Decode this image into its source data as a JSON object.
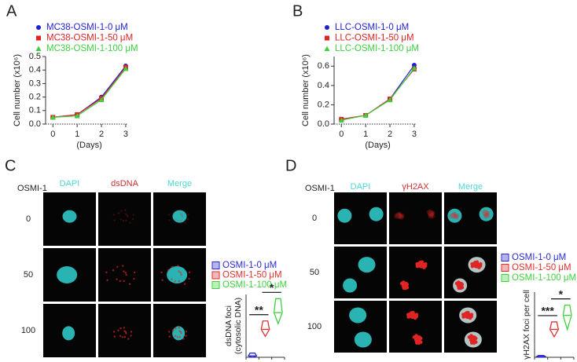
{
  "chart_data": [
    {
      "type": "line",
      "label": "A",
      "y_label": "Cell number (x10⁶)",
      "x_label": "(Days)",
      "x": [
        0,
        1,
        2,
        3
      ],
      "xlim": [
        -0.3,
        3.1
      ],
      "xticks": [
        0,
        1,
        2,
        3
      ],
      "ylim": [
        0,
        0.5
      ],
      "yticks": [
        {
          "value": 0,
          "label": "0.0"
        },
        0.1,
        0.2,
        0.3,
        0.4,
        0.5
      ],
      "series": [
        {
          "name": "MC38-OSMI-1-0 μM",
          "color": "#1f1fd6",
          "marker": "circle",
          "values": [
            0.05,
            0.07,
            0.2,
            0.43
          ]
        },
        {
          "name": "MC38-OSMI-1-50 μM",
          "color": "#e02424",
          "marker": "square",
          "values": [
            0.05,
            0.07,
            0.19,
            0.42
          ]
        },
        {
          "name": "MC38-OSMI-1-100 μM",
          "color": "#3fcf3f",
          "marker": "triangle",
          "values": [
            0.05,
            0.06,
            0.18,
            0.41
          ]
        }
      ]
    },
    {
      "type": "line",
      "label": "B",
      "y_label": "Cell number (x10⁶)",
      "x_label": "(Days)",
      "x": [
        0,
        1,
        2,
        3
      ],
      "xlim": [
        -0.3,
        3.1
      ],
      "xticks": [
        0,
        1,
        2,
        3
      ],
      "ylim": [
        0,
        0.7
      ],
      "yticks": [
        {
          "value": 0,
          "label": "0.0"
        },
        0.2,
        0.4,
        0.6
      ],
      "series": [
        {
          "name": "LLC-OSMI-1-0 μM",
          "color": "#1f1fd6",
          "marker": "circle",
          "values": [
            0.05,
            0.09,
            0.26,
            0.61
          ]
        },
        {
          "name": "LLC-OSMI-1-50 μM",
          "color": "#e02424",
          "marker": "square",
          "values": [
            0.05,
            0.09,
            0.26,
            0.57
          ]
        },
        {
          "name": "LLC-OSMI-1-100 μM",
          "color": "#3fcf3f",
          "marker": "triangle",
          "values": [
            0.04,
            0.09,
            0.25,
            0.58
          ]
        }
      ]
    },
    {
      "type": "violin",
      "label": "C",
      "y_label": [
        "dsDNA foci",
        "(cytosolic DNA)"
      ],
      "ylim": [
        0,
        45
      ],
      "image_panel": {
        "treatment_label": "OSMI-1",
        "columns": [
          "DAPI",
          "dsDNA",
          "Merge"
        ],
        "column_colors": [
          "#4fd6d6",
          "#d03030",
          "#4fd6d6"
        ],
        "rows": [
          "0",
          "50",
          "100"
        ]
      },
      "series": [
        {
          "name": "OSMI-1-0 μM",
          "color": "#2a2ad8",
          "min": 0,
          "median": 1,
          "max": 3
        },
        {
          "name": "OSMI-1-50 μM",
          "color": "#e03030",
          "min": 15,
          "median": 20,
          "max": 26
        },
        {
          "name": "OSMI-1-100 μM",
          "color": "#3fd03f",
          "min": 24,
          "median": 32,
          "max": 42
        }
      ],
      "comparisons": [
        {
          "label": "**",
          "between": [
            0,
            1
          ]
        },
        {
          "label": "*",
          "between": [
            1,
            2
          ]
        }
      ]
    },
    {
      "type": "violin",
      "label": "D",
      "y_label": [
        "γH2AX foci per cell"
      ],
      "ylim": [
        0,
        70
      ],
      "image_panel": {
        "treatment_label": "OSMI-1",
        "columns": [
          "DAPI",
          "γH2AX",
          "Merge"
        ],
        "column_colors": [
          "#4fd6d6",
          "#d03030",
          "#4fd6d6"
        ],
        "rows": [
          "0",
          "50",
          "100"
        ]
      },
      "series": [
        {
          "name": "OSMI-1-0 μM",
          "color": "#2a2ad8",
          "min": 0,
          "median": 1,
          "max": 2
        },
        {
          "name": "OSMI-1-50 μM",
          "color": "#e03030",
          "min": 22,
          "median": 30,
          "max": 38
        },
        {
          "name": "OSMI-1-100 μM",
          "color": "#3fd03f",
          "min": 30,
          "median": 45,
          "max": 56
        }
      ],
      "comparisons": [
        {
          "label": "***",
          "between": [
            0,
            1
          ]
        },
        {
          "label": "*",
          "between": [
            1,
            2
          ]
        }
      ]
    }
  ]
}
